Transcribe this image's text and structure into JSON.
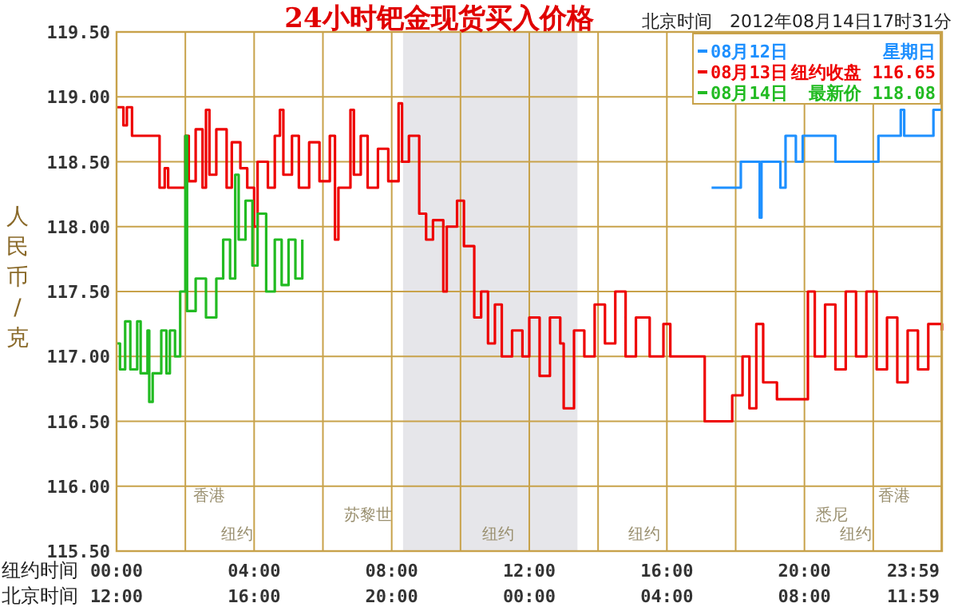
{
  "chart_data": {
    "type": "step",
    "title": "24小时钯金现货买入价格",
    "subtitle": "北京时间　2012年08月14日17时31分",
    "ylabel": "人民币/克",
    "xlabel": "纽约时间",
    "xlim": [
      0,
      24
    ],
    "ylim": [
      115.5,
      119.5
    ],
    "xticks": [
      {
        "value": 0,
        "label": "00:00"
      },
      {
        "value": 2,
        "label": null
      },
      {
        "value": 4,
        "label": "04:00"
      },
      {
        "value": 6,
        "label": null
      },
      {
        "value": 8,
        "label": "08:00"
      },
      {
        "value": 10,
        "label": null
      },
      {
        "value": 12,
        "label": "12:00"
      },
      {
        "value": 14,
        "label": null
      },
      {
        "value": 16,
        "label": "16:00"
      },
      {
        "value": 18,
        "label": null
      },
      {
        "value": 20,
        "label": "20:00"
      },
      {
        "value": 22,
        "label": null
      },
      {
        "value": 23.98,
        "label": "23:59"
      }
    ],
    "yticks": [
      {
        "value": 115.5,
        "label": "115.50"
      },
      {
        "value": 116,
        "label": "116.00"
      },
      {
        "value": 116.5,
        "label": "116.50"
      },
      {
        "value": 117,
        "label": "117.00"
      },
      {
        "value": 117.5,
        "label": "117.50"
      },
      {
        "value": 118,
        "label": "118.00"
      },
      {
        "value": 118.5,
        "label": "118.50"
      },
      {
        "value": 119,
        "label": "119.00"
      },
      {
        "value": 119.5,
        "label": "119.50"
      }
    ],
    "grid": true,
    "legend": "top right",
    "bands": [
      {
        "axis": "x",
        "from": 8.33,
        "to": 13.4,
        "color": "#e6e6ea"
      }
    ],
    "series": [
      {
        "name": "08月12日",
        "color": "#1e90ff",
        "x": [
          17.3,
          18.15,
          18.7,
          18.75,
          19.3,
          19.45,
          19.75,
          19.95,
          20.9,
          22.15,
          22.8,
          22.9,
          23.75,
          24
        ],
        "values": [
          118.3,
          118.5,
          118.07,
          118.5,
          118.3,
          118.7,
          118.5,
          118.7,
          118.5,
          118.7,
          118.9,
          118.7,
          118.9,
          118.9
        ]
      },
      {
        "name": "08月13日",
        "color": "#ee0000",
        "x": [
          0,
          0.2,
          0.3,
          0.45,
          1.25,
          1.4,
          1.5,
          1.95,
          2.0,
          2.1,
          2.3,
          2.5,
          2.6,
          2.7,
          2.9,
          3.2,
          3.35,
          3.6,
          3.8,
          4.0,
          4.1,
          4.4,
          4.6,
          4.75,
          4.85,
          5.1,
          5.3,
          5.6,
          5.9,
          6.2,
          6.35,
          6.45,
          6.8,
          6.9,
          7.1,
          7.3,
          7.6,
          7.9,
          8.2,
          8.3,
          8.5,
          8.8,
          9.0,
          9.2,
          9.5,
          9.6,
          9.9,
          10.1,
          10.4,
          10.6,
          10.8,
          11.0,
          11.2,
          11.5,
          11.8,
          12.0,
          12.3,
          12.6,
          12.9,
          13.0,
          13.3,
          13.6,
          13.9,
          14.2,
          14.5,
          14.8,
          15.1,
          15.5,
          15.9,
          16.1,
          17.1,
          17.9,
          18.2,
          18.4,
          18.6,
          18.8,
          19.2,
          20.1,
          20.3,
          20.6,
          20.9,
          21.2,
          21.5,
          21.8,
          22.1,
          22.4,
          22.7,
          23.0,
          23.3,
          23.6,
          24.0
        ],
        "values": [
          118.92,
          118.78,
          118.92,
          118.7,
          118.3,
          118.45,
          118.3,
          118.3,
          118.7,
          118.35,
          118.75,
          118.3,
          118.9,
          118.4,
          118.75,
          118.3,
          118.65,
          118.45,
          118.3,
          118.0,
          118.5,
          118.3,
          118.7,
          118.9,
          118.4,
          118.7,
          118.3,
          118.65,
          118.35,
          118.7,
          117.9,
          118.3,
          118.9,
          118.4,
          118.7,
          118.3,
          118.6,
          118.35,
          118.95,
          118.5,
          118.7,
          118.1,
          117.9,
          118.05,
          117.5,
          118.0,
          118.2,
          117.85,
          117.3,
          117.5,
          117.1,
          117.4,
          117.0,
          117.2,
          117.0,
          117.3,
          116.85,
          117.3,
          117.1,
          116.6,
          117.2,
          117.0,
          117.4,
          117.1,
          117.5,
          117.0,
          117.3,
          117.0,
          117.25,
          117.0,
          116.5,
          116.7,
          117.0,
          116.6,
          117.25,
          116.8,
          116.67,
          117.5,
          117.0,
          117.4,
          116.9,
          117.5,
          117.0,
          117.5,
          116.9,
          117.3,
          116.8,
          117.2,
          116.9,
          117.25,
          117.2
        ]
      },
      {
        "name": "08月14日",
        "color": "#22bb22",
        "x": [
          0,
          0.1,
          0.25,
          0.4,
          0.6,
          0.7,
          0.9,
          0.95,
          1.05,
          1.3,
          1.45,
          1.55,
          1.7,
          1.85,
          2.0,
          2.05,
          2.3,
          2.6,
          2.9,
          3.1,
          3.3,
          3.45,
          3.55,
          3.75,
          3.95,
          4.1,
          4.35,
          4.6,
          4.8,
          5.0,
          5.2,
          5.4
        ],
        "values": [
          117.1,
          116.9,
          117.27,
          116.9,
          117.27,
          116.87,
          117.2,
          116.65,
          116.87,
          117.2,
          116.87,
          117.2,
          117.0,
          117.5,
          118.7,
          117.35,
          117.6,
          117.3,
          117.6,
          117.9,
          117.6,
          118.4,
          117.9,
          118.2,
          117.7,
          118.1,
          117.5,
          117.9,
          117.55,
          117.9,
          117.6,
          117.9
        ]
      }
    ],
    "annotations": [
      "星期日",
      "纽约收盘 116.65",
      "最新价 118.08",
      "香港",
      "苏黎世",
      "纽约",
      "纽约",
      "纽约",
      "悉尼",
      "香港",
      "纽约",
      "北京时间",
      "12:00",
      "16:00",
      "20:00",
      "00:00",
      "04:00",
      "08:00",
      "11:59"
    ]
  }
}
